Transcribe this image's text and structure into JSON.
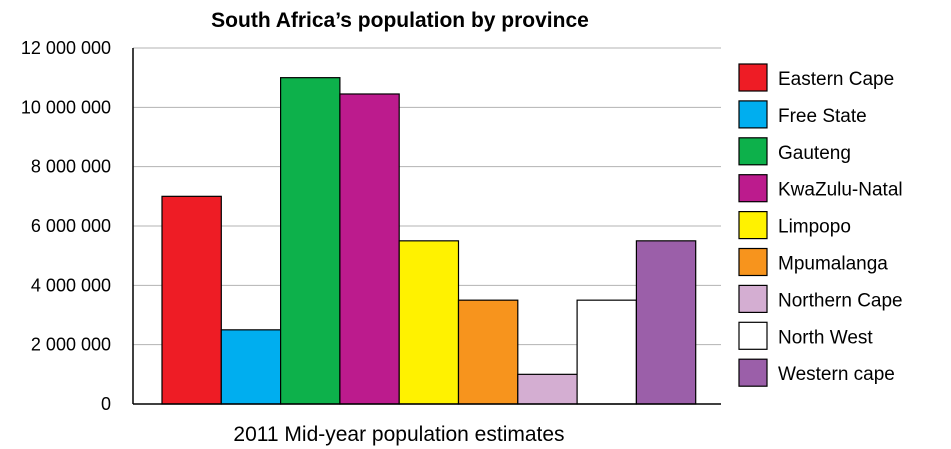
{
  "chart_data": {
    "type": "bar",
    "title": "South Africa’s population by province",
    "xlabel": "2011 Mid-year population estimates",
    "ylabel": "",
    "ylim": [
      0,
      12000000
    ],
    "yticks": [
      0,
      2000000,
      4000000,
      6000000,
      8000000,
      10000000,
      12000000
    ],
    "ytick_labels": [
      "0",
      "2 000 000",
      "4 000 000",
      "6 000 000",
      "8 000 000",
      "10 000 000",
      "12 000 000"
    ],
    "grid": "horizontal",
    "legend_position": "right",
    "series": [
      {
        "name": "Eastern Cape",
        "value": 7000000,
        "color": "#ee1c25"
      },
      {
        "name": "Free State",
        "value": 2500000,
        "color": "#00aeef"
      },
      {
        "name": "Gauteng",
        "value": 11000000,
        "color": "#0db14b"
      },
      {
        "name": "KwaZulu-Natal",
        "value": 10450000,
        "color": "#bc1b8d"
      },
      {
        "name": "Limpopo",
        "value": 5500000,
        "color": "#fff200"
      },
      {
        "name": "Mpumalanga",
        "value": 3500000,
        "color": "#f7941d"
      },
      {
        "name": "Northern Cape",
        "value": 1000000,
        "color": "#d4aed2"
      },
      {
        "name": "North West",
        "value": 3500000,
        "color": "#ffffff"
      },
      {
        "name": "Western cape",
        "value": 5500000,
        "color": "#9b5fa9"
      }
    ]
  }
}
